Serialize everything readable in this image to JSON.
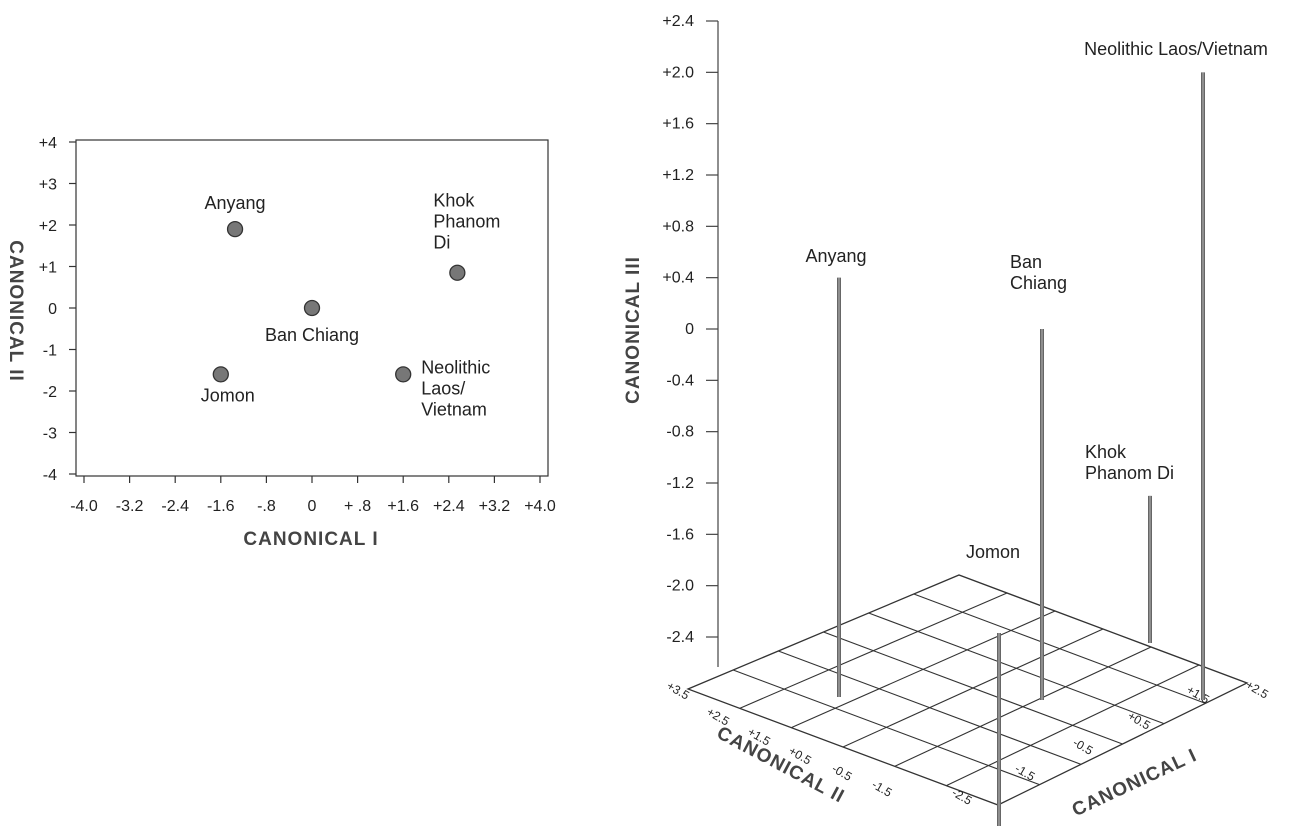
{
  "chart_data": [
    {
      "type": "scatter",
      "xlabel": "CANONICAL I",
      "ylabel": "CANONICAL II",
      "xlim": [
        -4.0,
        4.0
      ],
      "ylim": [
        -4,
        4
      ],
      "x_tick_values": [
        -4.0,
        -3.2,
        -2.4,
        -1.6,
        -0.8,
        0,
        0.8,
        1.6,
        2.4,
        3.2,
        4.0
      ],
      "x_tick_labels": [
        "-4.0",
        "-3.2",
        "-2.4",
        "-1.6",
        "-.8",
        "0",
        "+ .8",
        "+1.6",
        "+2.4",
        "+3.2",
        "+4.0"
      ],
      "y_tick_values": [
        4,
        3,
        2,
        1,
        0,
        -1,
        -2,
        -3,
        -4
      ],
      "y_tick_labels": [
        "+4",
        "+3",
        "+2",
        "+1",
        "0",
        "-1",
        "-2",
        "-3",
        "-4"
      ],
      "grid": false,
      "points": [
        {
          "label": "Anyang",
          "x": -1.35,
          "y": 1.9
        },
        {
          "label": "Khok\nPhanom\nDi",
          "x": 2.55,
          "y": 0.85
        },
        {
          "label": "Ban Chiang",
          "x": 0.0,
          "y": 0.0
        },
        {
          "label": "Jomon",
          "x": -1.6,
          "y": -1.6
        },
        {
          "label": "Neolithic\nLaos/\nVietnam",
          "x": 1.6,
          "y": -1.6
        }
      ]
    },
    {
      "type": "scatter",
      "xlabel": "CANONICAL I",
      "ylabel": "CANONICAL II",
      "zlabel": "CANONICAL III",
      "zlim": [
        -2.4,
        2.4
      ],
      "z_tick_values": [
        2.4,
        2.0,
        1.6,
        1.2,
        0.8,
        0.4,
        0,
        -0.4,
        -0.8,
        -1.2,
        -1.6,
        -2.0,
        -2.4
      ],
      "z_tick_labels": [
        "+2.4",
        "+2.0",
        "+1.6",
        "+1.2",
        "+0.8",
        "+0.4",
        "0",
        "-0.4",
        "-0.8",
        "-1.2",
        "-1.6",
        "-2.0",
        "-2.4"
      ],
      "x_tick_labels": [
        "-2.5",
        "-1.5",
        "-0.5",
        "+0.5",
        "+1.5",
        "+2.5"
      ],
      "y_tick_labels": [
        "+3.5",
        "+2.5",
        "+1.5",
        "+0.5",
        "-0.5",
        "-1.5"
      ],
      "points": [
        {
          "label": "Anyang",
          "z": 0.4
        },
        {
          "label": "Ban\nChiang",
          "z": 0.0
        },
        {
          "label": "Khok\nPhanom Di",
          "z": -1.3
        },
        {
          "label": "Jomon",
          "z": -2.4
        },
        {
          "label": "Neolithic Laos/Vietnam",
          "z": 2.0
        }
      ]
    }
  ]
}
